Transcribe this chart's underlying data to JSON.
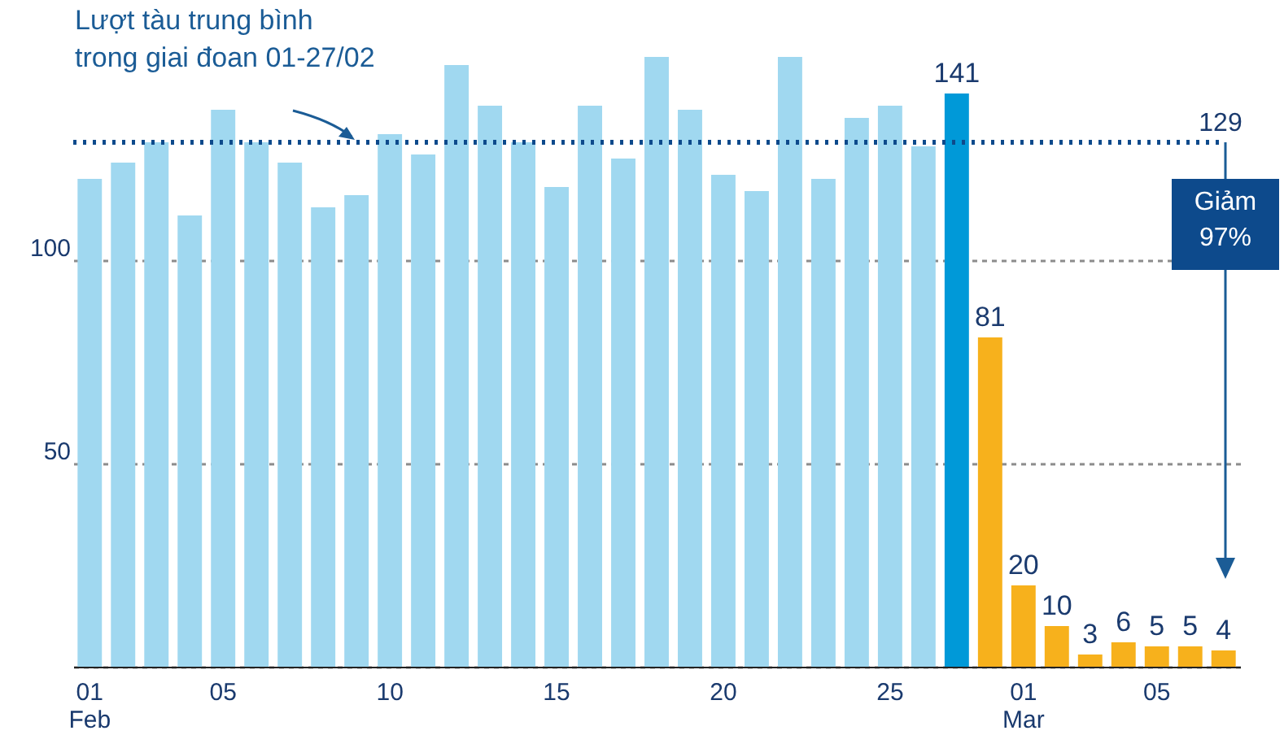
{
  "chart_data": {
    "type": "bar",
    "categories": [
      "01\nFeb",
      null,
      null,
      null,
      "05",
      null,
      null,
      null,
      null,
      "10",
      null,
      null,
      null,
      null,
      "15",
      null,
      null,
      null,
      null,
      "20",
      null,
      null,
      null,
      null,
      "25",
      null,
      null,
      null,
      "01\nMar",
      null,
      null,
      null,
      "05",
      null,
      null
    ],
    "values": [
      120,
      124,
      129,
      111,
      137,
      129,
      124,
      113,
      116,
      131,
      126,
      148,
      138,
      129,
      118,
      138,
      125,
      150,
      137,
      121,
      117,
      150,
      120,
      135,
      138,
      128,
      141,
      81,
      20,
      10,
      3,
      6,
      5,
      5,
      4
    ],
    "colors": [
      "#a0d8f0",
      "#a0d8f0",
      "#a0d8f0",
      "#a0d8f0",
      "#a0d8f0",
      "#a0d8f0",
      "#a0d8f0",
      "#a0d8f0",
      "#a0d8f0",
      "#a0d8f0",
      "#a0d8f0",
      "#a0d8f0",
      "#a0d8f0",
      "#a0d8f0",
      "#a0d8f0",
      "#a0d8f0",
      "#a0d8f0",
      "#a0d8f0",
      "#a0d8f0",
      "#a0d8f0",
      "#a0d8f0",
      "#a0d8f0",
      "#a0d8f0",
      "#a0d8f0",
      "#a0d8f0",
      "#a0d8f0",
      "#0099d8",
      "#f7b11c",
      "#f7b11c",
      "#f7b11c",
      "#f7b11c",
      "#f7b11c",
      "#f7b11c",
      "#f7b11c",
      "#f7b11c"
    ],
    "value_labels": [
      null,
      null,
      null,
      null,
      null,
      null,
      null,
      null,
      null,
      null,
      null,
      null,
      null,
      null,
      null,
      null,
      null,
      null,
      null,
      null,
      null,
      null,
      null,
      null,
      null,
      null,
      "141",
      "81",
      "20",
      "10",
      "3",
      "6",
      "5",
      "5",
      "4"
    ],
    "ylim": [
      0,
      150
    ],
    "yticks": [
      {
        "value": 0,
        "label": null
      },
      50,
      100
    ],
    "grid": "y",
    "ref_lines": [
      {
        "axis": "y",
        "value": 129,
        "label": "129",
        "color": "#0d4a8c",
        "line_style": "dotted"
      }
    ],
    "annotations": [
      "Lượt tàu trung bình\ntrong giai đoan 01-27/02",
      {
        "text": "Giảm\n97%",
        "y": 129
      }
    ]
  }
}
